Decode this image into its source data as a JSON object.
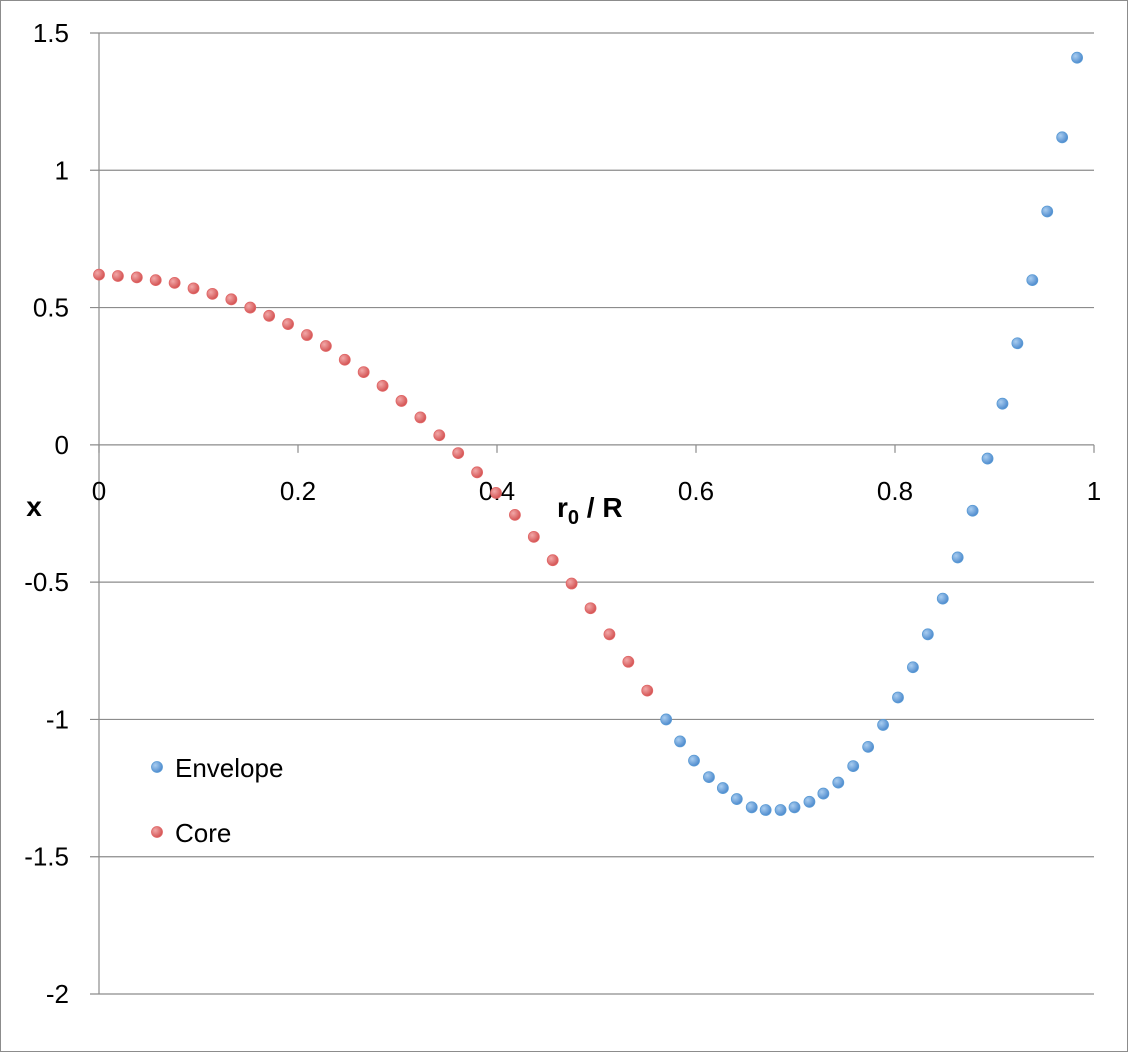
{
  "chart_data": {
    "type": "scatter",
    "xlabel": "r0 / R",
    "xlabel_main": "r",
    "xlabel_sub": "0",
    "xlabel_rest": " / R",
    "ylabel": "x",
    "xlim": [
      0,
      1
    ],
    "ylim": [
      -2,
      1.5
    ],
    "x_ticks": [
      0,
      0.2,
      0.4,
      0.6,
      0.8,
      1
    ],
    "x_tick_labels": [
      "0",
      "0.2",
      "0.4",
      "0.6",
      "0.8",
      "1"
    ],
    "y_ticks": [
      1.5,
      1,
      0.5,
      0,
      -0.5,
      -1,
      -1.5,
      -2
    ],
    "y_tick_labels": [
      "1.5",
      "1",
      "0.5",
      "0",
      "-0.5",
      "-1",
      "-1.5",
      "-2"
    ],
    "grid": "horizontal",
    "legend_position": "lower-left",
    "series": [
      {
        "name": "Envelope",
        "color": "#5b9bd5",
        "x": [
          0.57,
          0.584,
          0.598,
          0.613,
          0.627,
          0.641,
          0.656,
          0.67,
          0.685,
          0.699,
          0.714,
          0.728,
          0.743,
          0.758,
          0.773,
          0.788,
          0.803,
          0.818,
          0.833,
          0.848,
          0.863,
          0.878,
          0.893,
          0.908,
          0.923,
          0.938,
          0.953,
          0.968,
          0.983
        ],
        "y": [
          -1.0,
          -1.08,
          -1.15,
          -1.21,
          -1.25,
          -1.29,
          -1.32,
          -1.33,
          -1.33,
          -1.32,
          -1.3,
          -1.27,
          -1.23,
          -1.17,
          -1.1,
          -1.02,
          -0.92,
          -0.81,
          -0.69,
          -0.56,
          -0.41,
          -0.24,
          -0.05,
          0.15,
          0.37,
          0.6,
          0.85,
          1.12,
          1.41
        ]
      },
      {
        "name": "Core",
        "color": "#e06666",
        "x": [
          0.0,
          0.019,
          0.038,
          0.057,
          0.076,
          0.095,
          0.114,
          0.133,
          0.152,
          0.171,
          0.19,
          0.209,
          0.228,
          0.247,
          0.266,
          0.285,
          0.304,
          0.323,
          0.342,
          0.361,
          0.38,
          0.399,
          0.418,
          0.437,
          0.456,
          0.475,
          0.494,
          0.513,
          0.532,
          0.551
        ],
        "y": [
          0.62,
          0.615,
          0.61,
          0.6,
          0.59,
          0.57,
          0.55,
          0.53,
          0.5,
          0.47,
          0.44,
          0.4,
          0.36,
          0.31,
          0.265,
          0.215,
          0.16,
          0.1,
          0.035,
          -0.03,
          -0.1,
          -0.175,
          -0.255,
          -0.335,
          -0.42,
          -0.505,
          -0.595,
          -0.69,
          -0.79,
          -0.895
        ]
      }
    ]
  }
}
